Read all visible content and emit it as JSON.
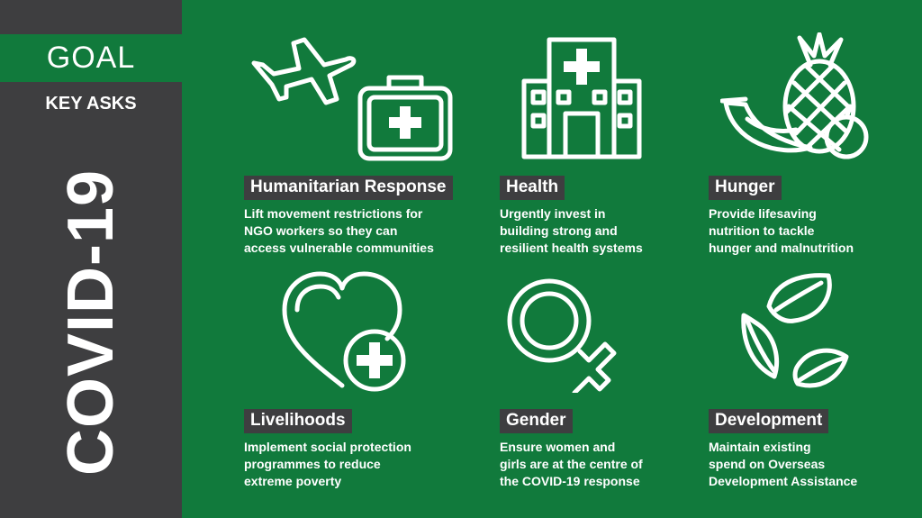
{
  "sidebar": {
    "logo": "GOAL",
    "subtitle": "KEY ASKS",
    "vertical_title": "COVID-19"
  },
  "cards": [
    {
      "title": "Humanitarian Response",
      "desc": [
        "Lift movement restrictions for",
        "NGO workers so they can",
        "access vulnerable communities"
      ],
      "icon": "plane-and-medical-kit-icon"
    },
    {
      "title": "Health",
      "desc": [
        "Urgently invest in",
        "building strong and",
        "resilient health systems"
      ],
      "icon": "hospital-icon"
    },
    {
      "title": "Hunger",
      "desc": [
        "Provide lifesaving",
        "nutrition to tackle",
        "hunger and malnutrition"
      ],
      "icon": "fruit-icon"
    },
    {
      "title": "Livelihoods",
      "desc": [
        "Implement social protection",
        "programmes to reduce",
        "extreme poverty"
      ],
      "icon": "heart-plus-icon"
    },
    {
      "title": "Gender",
      "desc": [
        "Ensure women and",
        "girls are at the centre of",
        "the COVID-19 response"
      ],
      "icon": "female-symbol-icon"
    },
    {
      "title": "Development",
      "desc": [
        "Maintain existing",
        "spend on Overseas",
        "Development Assistance"
      ],
      "icon": "leaves-cycle-icon"
    }
  ],
  "colors": {
    "green": "#117a3c",
    "dark": "#3e3e40",
    "text": "#ffffff"
  }
}
